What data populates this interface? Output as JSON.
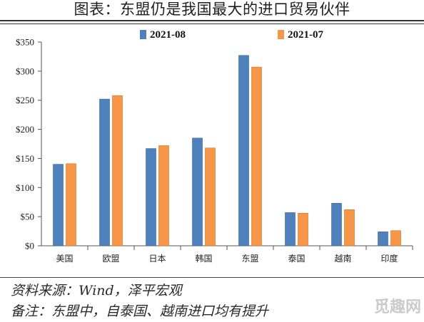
{
  "page": {
    "title": "图表：东盟仍是我国最大的进口贸易伙伴",
    "source": "资料来源：Wind，泽平宏观",
    "note": "备注：东盟中，自泰国、越南进口均有提升",
    "watermark": "觅趣网"
  },
  "chart_data": {
    "type": "bar",
    "title": "",
    "xlabel": "",
    "ylabel": "",
    "categories": [
      "美国",
      "欧盟",
      "日本",
      "韩国",
      "东盟",
      "泰国",
      "越南",
      "印度"
    ],
    "series": [
      {
        "name": "2021-08",
        "color": "#4f81bd",
        "values": [
          140,
          252,
          167,
          185,
          327,
          57,
          73,
          24
        ]
      },
      {
        "name": "2021-07",
        "color": "#f79646",
        "values": [
          141,
          258,
          172,
          168,
          307,
          56,
          62,
          26
        ]
      }
    ],
    "ylim": [
      0,
      350
    ],
    "yticks": [
      0,
      50,
      100,
      150,
      200,
      250,
      300,
      350
    ],
    "ytick_labels": [
      "$0",
      "$50",
      "$100",
      "$150",
      "$200",
      "$250",
      "$300",
      "$350"
    ],
    "grid": false,
    "legend_position": "top-center"
  }
}
